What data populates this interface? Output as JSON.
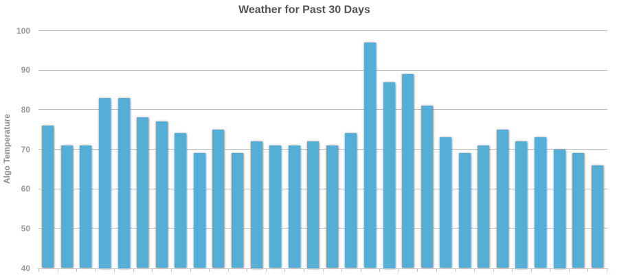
{
  "chart_data": {
    "type": "bar",
    "title": "Weather for Past 30 Days",
    "ylabel": "Algo Temperature",
    "xlabel": "",
    "n_points": 30,
    "values": [
      76,
      71,
      71,
      83,
      83,
      78,
      77,
      74,
      69,
      75,
      69,
      72,
      71,
      71,
      72,
      71,
      74,
      97,
      87,
      89,
      81,
      73,
      69,
      71,
      75,
      72,
      73,
      70,
      69,
      66
    ],
    "ylim": [
      40,
      100
    ],
    "yticks": [
      40,
      50,
      60,
      70,
      80,
      90,
      100
    ],
    "x_tick_labels_visible": false,
    "grid": "horizontal",
    "legend": "none",
    "colors": {
      "bar_fill": "#55AED6",
      "title_text": "#525252",
      "y_tick_text": "#999999",
      "ylabel_text": "#8B8B8B",
      "gridline": "#BDBDBD",
      "axis_line": "#C9C9C9",
      "x_tick_mark": "#A9C6DB",
      "background": "#FFFFFF"
    }
  }
}
